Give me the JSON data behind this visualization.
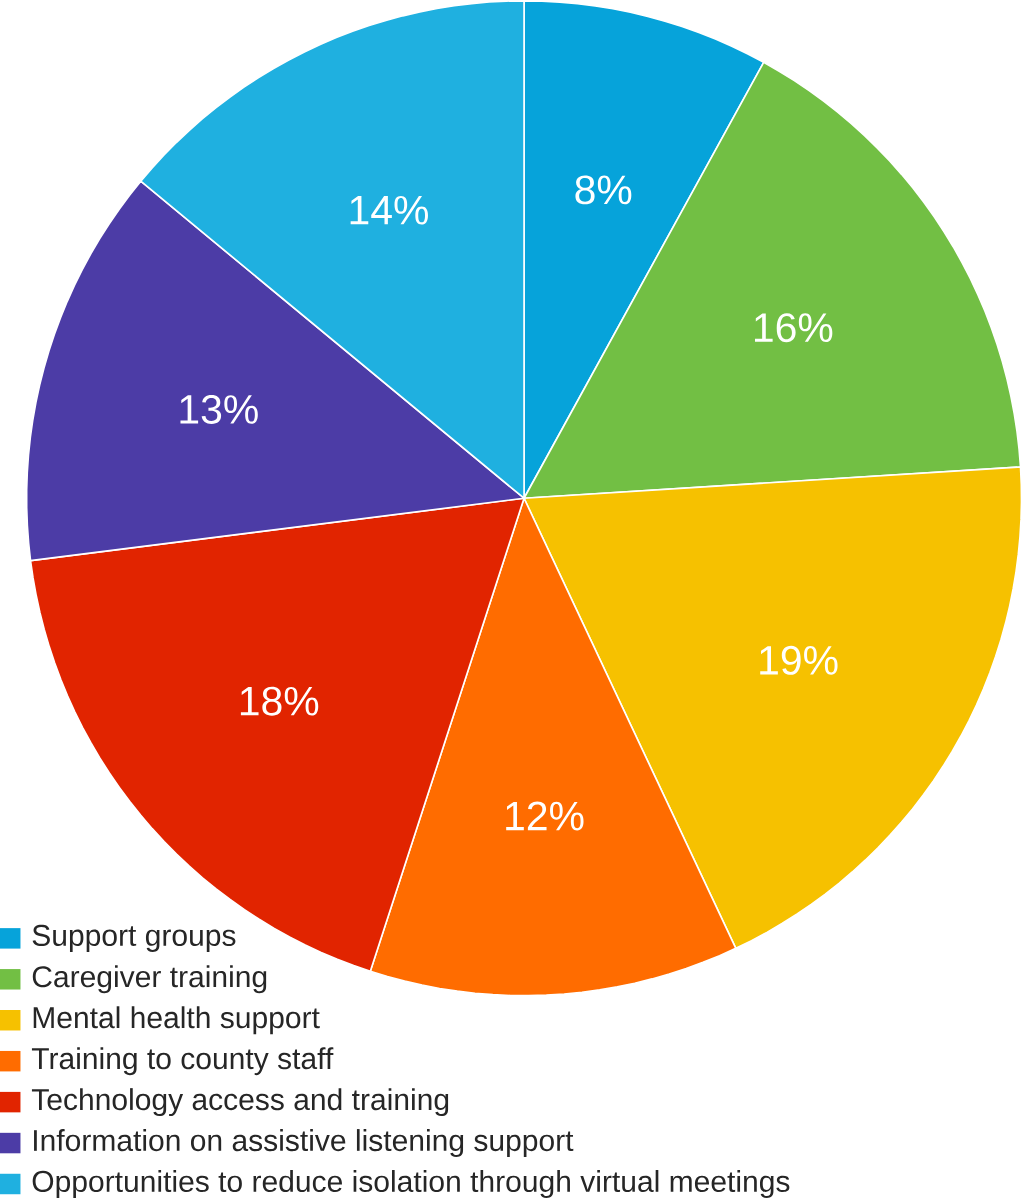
{
  "chart_data": {
    "type": "pie",
    "categories": [
      "Support groups",
      "Caregiver training",
      "Mental health support",
      "Training to county staff",
      "Technology access and training",
      "Information on assistive listening support",
      "Opportunities to reduce isolation through virtual meetings"
    ],
    "values": [
      8,
      16,
      19,
      12,
      18,
      13,
      14
    ],
    "colors": [
      "#06a3da",
      "#72bf44",
      "#f6c100",
      "#ff6c00",
      "#e12400",
      "#4c3ca6",
      "#1fb0e0"
    ],
    "value_labels": [
      "8%",
      "16%",
      "19%",
      "12%",
      "18%",
      "13%",
      "14%"
    ],
    "legend": "bottom left"
  }
}
